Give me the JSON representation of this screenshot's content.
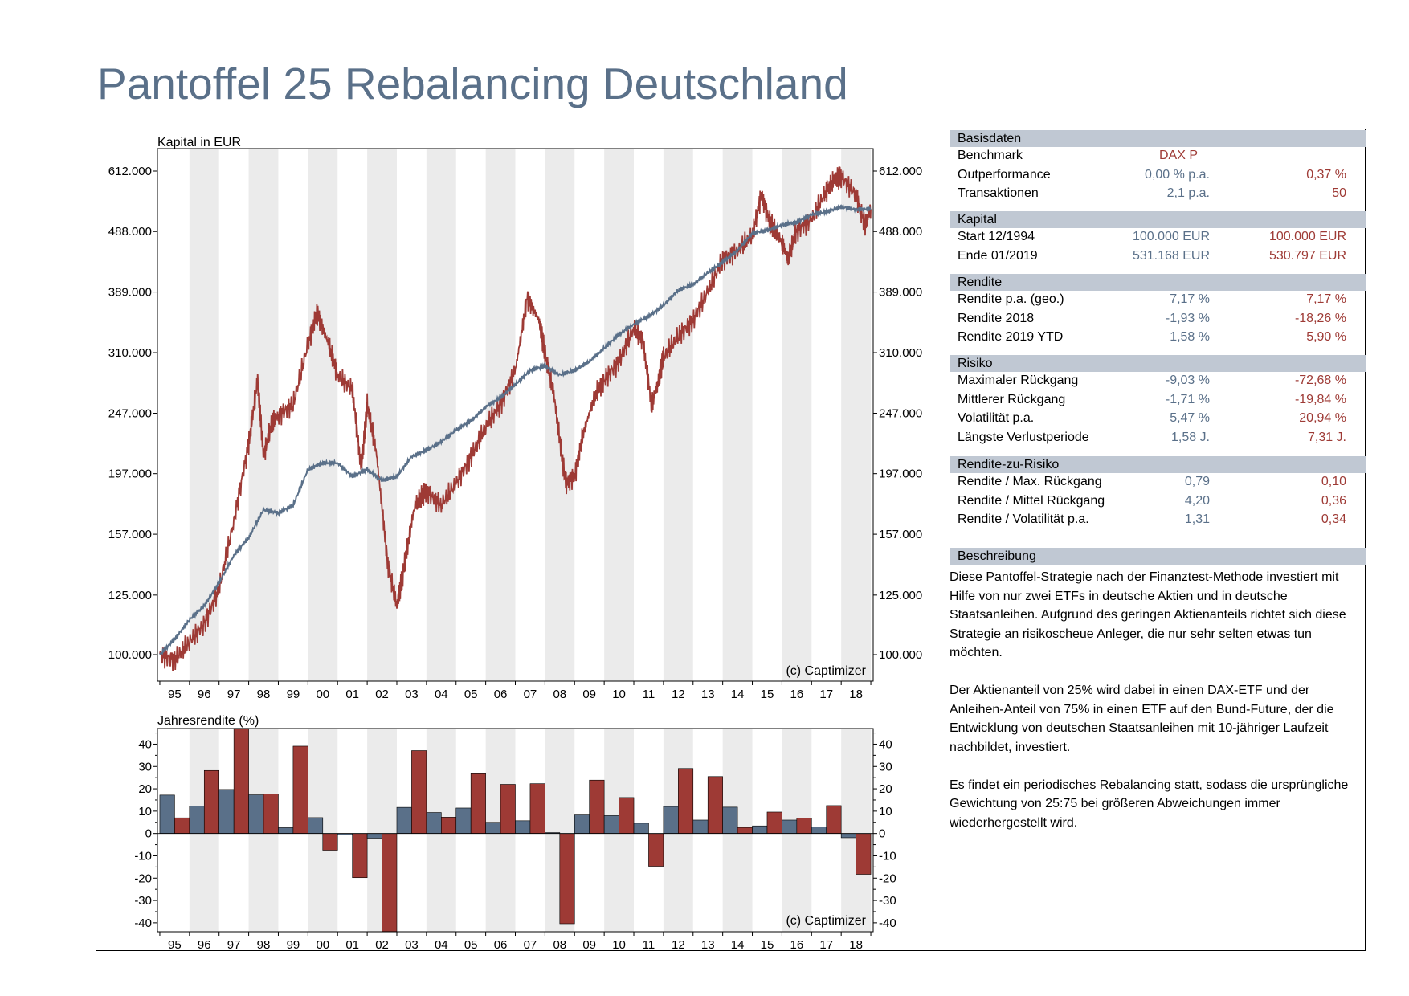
{
  "title": "Pantoffel 25 Rebalancing Deutschland",
  "colors": {
    "portfolio": "#5a7089",
    "benchmark": "#9e3a35",
    "band": "#ebebeb",
    "header": "#c0c8d3",
    "title": "#5a7089"
  },
  "chart_data": [
    {
      "type": "line",
      "title": "",
      "ylabel": "Kapital in EUR",
      "y_scale": "log",
      "y_ticks": [
        "100.000",
        "125.000",
        "157.000",
        "197.000",
        "247.000",
        "310.000",
        "389.000",
        "488.000",
        "612.000"
      ],
      "x_tick_labels": [
        "95",
        "96",
        "97",
        "98",
        "99",
        "00",
        "01",
        "02",
        "03",
        "04",
        "05",
        "06",
        "07",
        "08",
        "09",
        "10",
        "11",
        "12",
        "13",
        "14",
        "15",
        "16",
        "17",
        "18"
      ],
      "watermark": "(c) Captimizer",
      "series": [
        {
          "color": "#5a7089",
          "x": [
            1995.0,
            1995.5,
            1996.0,
            1996.5,
            1997.0,
            1997.5,
            1998.0,
            1998.5,
            1999.0,
            1999.5,
            2000.0,
            2000.5,
            2001.0,
            2001.5,
            2002.0,
            2002.5,
            2003.0,
            2003.5,
            2004.0,
            2004.5,
            2005.0,
            2005.5,
            2006.0,
            2006.5,
            2007.0,
            2007.5,
            2008.0,
            2008.5,
            2009.0,
            2009.5,
            2010.0,
            2010.5,
            2011.0,
            2011.5,
            2012.0,
            2012.5,
            2013.0,
            2013.5,
            2014.0,
            2014.5,
            2015.0,
            2015.5,
            2016.0,
            2016.5,
            2017.0,
            2017.5,
            2018.0,
            2018.5,
            2019.0
          ],
          "y": [
            100000,
            106000,
            114000,
            120000,
            131000,
            145000,
            155000,
            172000,
            170000,
            175000,
            200000,
            205000,
            205000,
            195000,
            200000,
            192000,
            195000,
            210000,
            215000,
            222000,
            232000,
            240000,
            253000,
            262000,
            275000,
            290000,
            295000,
            285000,
            290000,
            300000,
            315000,
            332000,
            345000,
            355000,
            370000,
            392000,
            400000,
            418000,
            435000,
            455000,
            485000,
            490000,
            500000,
            505000,
            520000,
            525000,
            535000,
            530000,
            531168
          ]
        },
        {
          "color": "#9e3a35",
          "x": [
            1995.0,
            1995.5,
            1996.0,
            1996.5,
            1997.0,
            1997.5,
            1998.0,
            1998.3,
            1998.5,
            1998.8,
            1999.0,
            1999.5,
            2000.0,
            2000.3,
            2000.7,
            2001.0,
            2001.5,
            2001.8,
            2002.0,
            2002.3,
            2002.7,
            2003.0,
            2003.2,
            2003.6,
            2004.0,
            2004.5,
            2005.0,
            2005.5,
            2006.0,
            2006.5,
            2007.0,
            2007.4,
            2007.8,
            2008.0,
            2008.3,
            2008.7,
            2009.0,
            2009.3,
            2009.7,
            2010.0,
            2010.5,
            2011.0,
            2011.3,
            2011.6,
            2011.8,
            2012.0,
            2012.5,
            2013.0,
            2013.5,
            2014.0,
            2014.5,
            2015.0,
            2015.3,
            2015.6,
            2016.0,
            2016.2,
            2016.5,
            2017.0,
            2017.5,
            2017.8,
            2018.0,
            2018.5,
            2018.8,
            2019.0
          ],
          "y": [
            100000,
            98000,
            105000,
            112000,
            128000,
            165000,
            220000,
            280000,
            210000,
            240000,
            245000,
            255000,
            320000,
            360000,
            320000,
            285000,
            270000,
            200000,
            255000,
            215000,
            140000,
            120000,
            135000,
            175000,
            185000,
            175000,
            190000,
            210000,
            235000,
            255000,
            290000,
            380000,
            350000,
            310000,
            265000,
            190000,
            195000,
            230000,
            265000,
            280000,
            300000,
            340000,
            325000,
            255000,
            275000,
            305000,
            330000,
            350000,
            390000,
            440000,
            455000,
            480000,
            560000,
            505000,
            470000,
            440000,
            490000,
            510000,
            570000,
            595000,
            600000,
            560000,
            500000,
            530797
          ]
        }
      ]
    },
    {
      "type": "bar",
      "title": "",
      "ylabel": "Jahresrendite (%)",
      "ylim": [
        -44,
        47
      ],
      "y_ticks": [
        -40,
        -30,
        -20,
        -10,
        0,
        10,
        20,
        30,
        40
      ],
      "categories": [
        "95",
        "96",
        "97",
        "98",
        "99",
        "00",
        "01",
        "02",
        "03",
        "04",
        "05",
        "06",
        "07",
        "08",
        "09",
        "10",
        "11",
        "12",
        "13",
        "14",
        "15",
        "16",
        "17",
        "18"
      ],
      "watermark": "(c) Captimizer",
      "series": [
        {
          "color": "#5a7089",
          "values": [
            17.2,
            12.3,
            19.7,
            17.3,
            2.6,
            7.1,
            -0.7,
            -2.1,
            11.7,
            9.4,
            11.4,
            5.0,
            5.7,
            0.4,
            8.3,
            8.0,
            4.6,
            12.1,
            6.0,
            11.8,
            3.4,
            6.0,
            3.0,
            -1.9
          ]
        },
        {
          "color": "#9e3a35",
          "values": [
            7.0,
            28.2,
            47.1,
            17.7,
            39.1,
            -7.5,
            -19.8,
            -43.9,
            37.1,
            7.3,
            27.1,
            22.0,
            22.3,
            -40.4,
            23.9,
            16.1,
            -14.7,
            29.1,
            25.5,
            2.7,
            9.6,
            6.9,
            12.5,
            -18.3
          ]
        }
      ]
    }
  ],
  "table": {
    "sections": [
      {
        "header": "Basisdaten",
        "rows": [
          {
            "label": "Benchmark",
            "center": "DAX P"
          },
          {
            "label": "Outperformance",
            "v1": "0,00 % p.a.",
            "v2": "0,37 %"
          },
          {
            "label": "Transaktionen",
            "v1": "2,1 p.a.",
            "v2": "50"
          }
        ]
      },
      {
        "header": "Kapital",
        "rows": [
          {
            "label": "Start  12/1994",
            "v1": "100.000 EUR",
            "v2": "100.000 EUR"
          },
          {
            "label": "Ende 01/2019",
            "v1": "531.168 EUR",
            "v2": "530.797 EUR"
          }
        ]
      },
      {
        "header": "Rendite",
        "rows": [
          {
            "label": "Rendite p.a. (geo.)",
            "v1": "7,17 %",
            "v2": "7,17 %"
          },
          {
            "label": "Rendite 2018",
            "v1": "-1,93 %",
            "v2": "-18,26 %"
          },
          {
            "label": "Rendite 2019 YTD",
            "v1": "1,58 %",
            "v2": "5,90 %"
          }
        ]
      },
      {
        "header": "Risiko",
        "rows": [
          {
            "label": "Maximaler Rückgang",
            "v1": "-9,03 %",
            "v2": "-72,68 %"
          },
          {
            "label": "Mittlerer Rückgang",
            "v1": "-1,71 %",
            "v2": "-19,84 %"
          },
          {
            "label": "Volatilität p.a.",
            "v1": "5,47 %",
            "v2": "20,94 %"
          },
          {
            "label": "Längste Verlustperiode",
            "v1": "1,58 J.",
            "v2": "7,31 J."
          }
        ]
      },
      {
        "header": "Rendite-zu-Risiko",
        "rows": [
          {
            "label": "Rendite / Max. Rückgang",
            "v1": "0,79",
            "v2": "0,10"
          },
          {
            "label": "Rendite / Mittel Rückgang",
            "v1": "4,20",
            "v2": "0,36"
          },
          {
            "label": "Rendite / Volatilität p.a.",
            "v1": "1,31",
            "v2": "0,34"
          }
        ]
      }
    ]
  },
  "description": {
    "header": "Beschreibung",
    "paragraphs": [
      "Diese Pantoffel-Strategie nach der Finanztest-Methode investiert mit Hilfe von nur zwei ETFs in deutsche Aktien und in deutsche Staatsanleihen. Aufgrund des geringen Aktienanteils richtet sich diese Strategie an risikoscheue Anleger, die nur sehr selten etwas tun möchten.",
      "Der Aktienanteil von 25% wird dabei in einen DAX-ETF und der Anleihen-Anteil von 75% in einen ETF auf den Bund-Future, der die Entwicklung von deutschen Staatsanleihen mit 10-jähriger Laufzeit nachbildet, investiert.",
      "Es findet ein periodisches Rebalancing statt, sodass die ursprüngliche Gewichtung von 25:75 bei größeren Abweichungen immer wiederhergestellt wird."
    ]
  }
}
